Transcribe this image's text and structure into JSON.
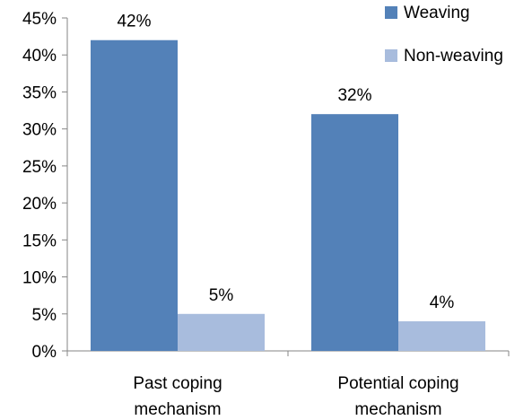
{
  "chart_data": {
    "type": "bar",
    "categories": [
      [
        "Past coping",
        "mechanism"
      ],
      [
        "Potential coping",
        "mechanism"
      ]
    ],
    "series": [
      {
        "name": "Weaving",
        "values": [
          42,
          32
        ],
        "labels": [
          "42%",
          "32%"
        ],
        "color": "#5381b8"
      },
      {
        "name": "Non-weaving",
        "values": [
          5,
          4
        ],
        "labels": [
          "5%",
          "4%"
        ],
        "color": "#a8bcdd"
      }
    ],
    "yticks": [
      "0%",
      "5%",
      "10%",
      "15%",
      "20%",
      "25%",
      "30%",
      "35%",
      "40%",
      "45%"
    ],
    "ylim": [
      0,
      45
    ],
    "grid": false,
    "legend_position": "top-right"
  }
}
